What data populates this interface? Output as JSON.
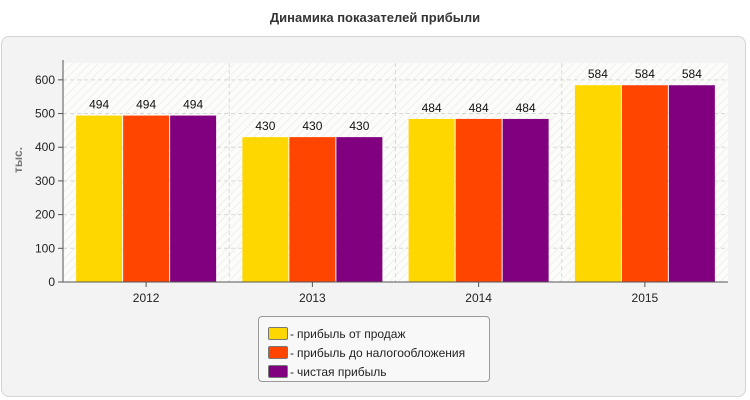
{
  "chart_data": {
    "type": "bar",
    "title": "Динамика показателей прибыли",
    "ylabel": "тыс.",
    "xlabel": "",
    "categories": [
      "2012",
      "2013",
      "2014",
      "2015"
    ],
    "series": [
      {
        "name": "прибыль от продаж",
        "color": "#FFD700",
        "values": [
          494,
          430,
          484,
          584
        ]
      },
      {
        "name": "прибыль до налогообложения",
        "color": "#FF4500",
        "values": [
          494,
          430,
          484,
          584
        ]
      },
      {
        "name": "чистая прибыль",
        "color": "#800080",
        "values": [
          494,
          430,
          484,
          584
        ]
      }
    ],
    "ylim": [
      0,
      650
    ],
    "yticks": [
      0,
      100,
      200,
      300,
      400,
      500,
      600
    ],
    "grid": true,
    "legend_position": "bottom-center"
  },
  "legend": {
    "dash": "-"
  }
}
